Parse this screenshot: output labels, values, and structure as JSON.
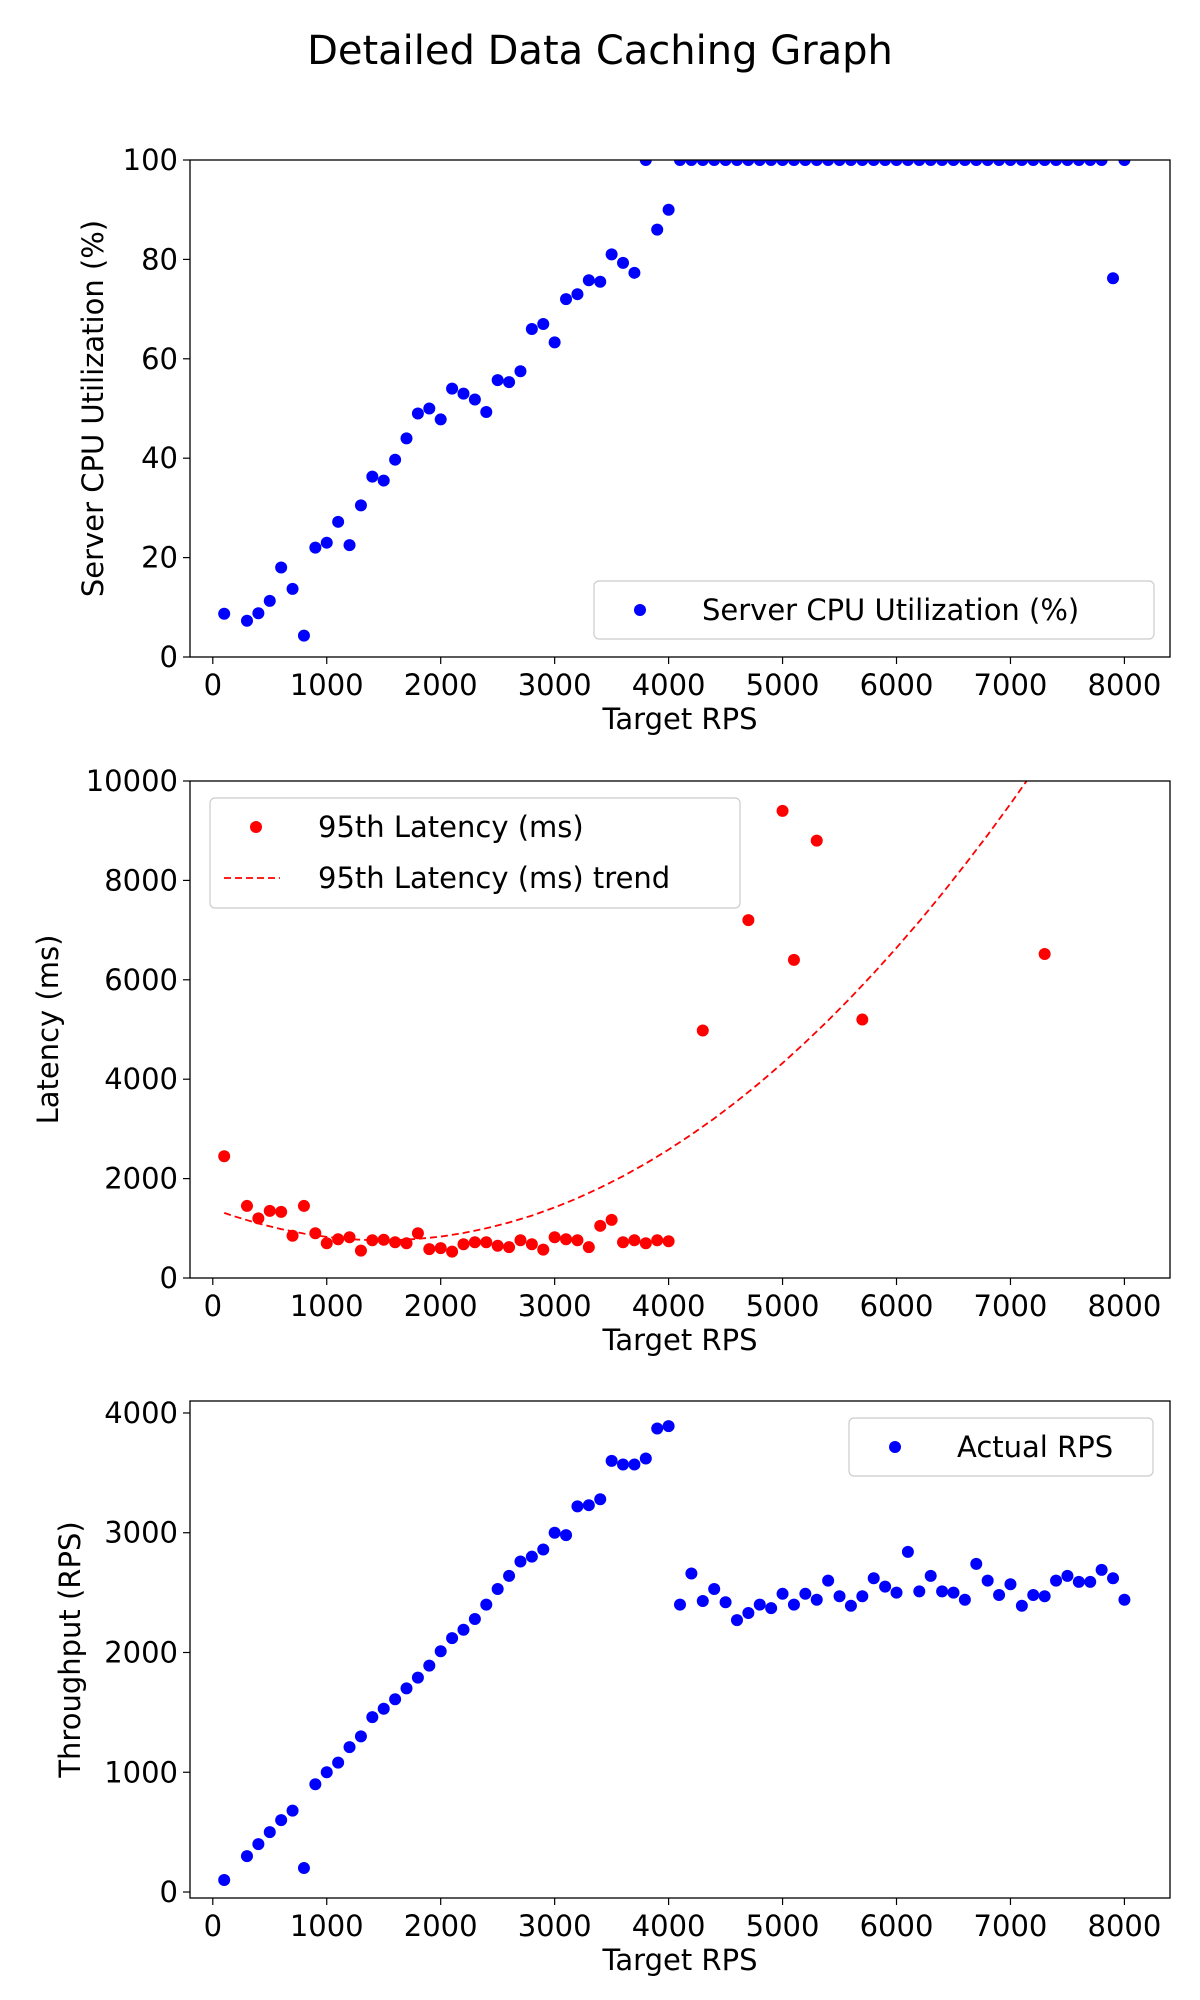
{
  "title": "Detailed Data Caching Graph",
  "colors": {
    "blue": "#0000ff",
    "red": "#ff0000"
  },
  "chart_data": [
    {
      "type": "scatter",
      "xlabel": "Target RPS",
      "ylabel": "Server CPU Utilization (%)",
      "xlim": [
        -200,
        8400
      ],
      "ylim": [
        0,
        100
      ],
      "xticks": [
        0,
        1000,
        2000,
        3000,
        4000,
        5000,
        6000,
        7000,
        8000
      ],
      "yticks": [
        0,
        20,
        40,
        60,
        80,
        100
      ],
      "legend_position": "lower-right",
      "series": [
        {
          "name": "Server CPU Utilization (%)",
          "kind": "points",
          "color": "#0000ff",
          "x": [
            100,
            300,
            400,
            500,
            600,
            700,
            800,
            900,
            1000,
            1100,
            1200,
            1300,
            1400,
            1500,
            1600,
            1700,
            1800,
            1900,
            2000,
            2100,
            2200,
            2300,
            2400,
            2500,
            2600,
            2700,
            2800,
            2900,
            3000,
            3100,
            3200,
            3300,
            3400,
            3500,
            3600,
            3700,
            3800,
            3900,
            4000,
            4100,
            4200,
            4300,
            4400,
            4500,
            4600,
            4700,
            4800,
            4900,
            5000,
            5100,
            5200,
            5300,
            5400,
            5500,
            5600,
            5700,
            5800,
            5900,
            6000,
            6100,
            6200,
            6300,
            6400,
            6500,
            6600,
            6700,
            6800,
            6900,
            7000,
            7100,
            7200,
            7300,
            7400,
            7500,
            7600,
            7700,
            7800,
            7900,
            8000
          ],
          "y": [
            8.7,
            7.3,
            8.8,
            11.3,
            18,
            13.7,
            4.3,
            22,
            23,
            27.2,
            22.5,
            30.5,
            36.3,
            35.5,
            39.7,
            44,
            49,
            50,
            47.8,
            54,
            53,
            51.8,
            49.3,
            55.7,
            55.3,
            57.5,
            66,
            67,
            63.3,
            72,
            73,
            75.8,
            75.5,
            81,
            79.3,
            77.3,
            100,
            86,
            90,
            100,
            100,
            100,
            100,
            100,
            100,
            100,
            100,
            100,
            100,
            100,
            100,
            100,
            100,
            100,
            100,
            100,
            100,
            100,
            100,
            100,
            100,
            100,
            100,
            100,
            100,
            100,
            100,
            100,
            100,
            100,
            100,
            100,
            100,
            100,
            100,
            100,
            100,
            76.2,
            100
          ]
        }
      ]
    },
    {
      "type": "scatter",
      "xlabel": "Target RPS",
      "ylabel": "Latency (ms)",
      "xlim": [
        -200,
        8400
      ],
      "ylim": [
        0,
        10000
      ],
      "xticks": [
        0,
        1000,
        2000,
        3000,
        4000,
        5000,
        6000,
        7000,
        8000
      ],
      "yticks": [
        0,
        2000,
        4000,
        6000,
        8000,
        10000
      ],
      "legend_position": "top-left",
      "series": [
        {
          "name": "95th Latency (ms)",
          "kind": "points",
          "color": "#ff0000",
          "x": [
            100,
            300,
            400,
            500,
            600,
            700,
            800,
            900,
            1000,
            1100,
            1200,
            1300,
            1400,
            1500,
            1600,
            1700,
            1800,
            1900,
            2000,
            2100,
            2200,
            2300,
            2400,
            2500,
            2600,
            2700,
            2800,
            2900,
            3000,
            3100,
            3200,
            3300,
            3400,
            3500,
            3600,
            3700,
            3800,
            3900,
            4000,
            4300,
            4700,
            5000,
            5100,
            5300,
            5700,
            7300
          ],
          "y": [
            2450,
            1450,
            1200,
            1350,
            1330,
            850,
            1450,
            900,
            700,
            780,
            820,
            550,
            760,
            770,
            720,
            700,
            900,
            580,
            600,
            530,
            680,
            720,
            720,
            650,
            620,
            760,
            680,
            570,
            820,
            780,
            760,
            620,
            1050,
            1170,
            720,
            760,
            700,
            760,
            740,
            4980,
            7200,
            9400,
            6400,
            8800,
            5200,
            6520
          ]
        },
        {
          "name": "95th Latency (ms) trend",
          "kind": "dashed-line",
          "color": "#ff0000",
          "x": [
            100,
            200,
            400,
            600,
            800,
            1000,
            1200,
            1400,
            1600,
            1800,
            2000,
            2200,
            2400,
            2600,
            2800,
            3000,
            3200,
            3400,
            3600,
            3800,
            4000,
            4200,
            4400,
            4600,
            4800,
            5000,
            5200,
            5400,
            5600,
            5800,
            6000,
            6200,
            6400,
            6600,
            6800,
            7000,
            7200
          ],
          "y": [
            1310,
            1233,
            1097,
            984,
            893,
            826,
            781,
            760,
            761,
            786,
            834,
            905,
            999,
            1116,
            1256,
            1420,
            1606,
            1816,
            2048,
            2304,
            2583,
            2885,
            3210,
            3558,
            3929,
            4324,
            4741,
            5182,
            5646,
            6133,
            6643,
            7176,
            7733,
            8313,
            8916,
            9542,
            10192
          ]
        }
      ]
    },
    {
      "type": "scatter",
      "xlabel": "Target RPS",
      "ylabel": "Throughput (RPS)",
      "xlim": [
        -200,
        8400
      ],
      "ylim": [
        -50,
        4100
      ],
      "xticks": [
        0,
        1000,
        2000,
        3000,
        4000,
        5000,
        6000,
        7000,
        8000
      ],
      "yticks": [
        0,
        1000,
        2000,
        3000,
        4000
      ],
      "legend_position": "top-right",
      "series": [
        {
          "name": "Actual RPS",
          "kind": "points",
          "color": "#0000ff",
          "x": [
            100,
            300,
            400,
            500,
            600,
            700,
            800,
            900,
            1000,
            1100,
            1200,
            1300,
            1400,
            1500,
            1600,
            1700,
            1800,
            1900,
            2000,
            2100,
            2200,
            2300,
            2400,
            2500,
            2600,
            2700,
            2800,
            2900,
            3000,
            3100,
            3200,
            3300,
            3400,
            3500,
            3600,
            3700,
            3800,
            3900,
            4000,
            4100,
            4200,
            4300,
            4400,
            4500,
            4600,
            4700,
            4800,
            4900,
            5000,
            5100,
            5200,
            5300,
            5400,
            5500,
            5600,
            5700,
            5800,
            5900,
            6000,
            6100,
            6200,
            6300,
            6400,
            6500,
            6600,
            6700,
            6800,
            6900,
            7000,
            7100,
            7200,
            7300,
            7400,
            7500,
            7600,
            7700,
            7800,
            7900,
            8000
          ],
          "y": [
            100,
            300,
            400,
            500,
            600,
            680,
            200,
            900,
            1000,
            1080,
            1210,
            1300,
            1460,
            1530,
            1610,
            1700,
            1790,
            1890,
            2010,
            2120,
            2190,
            2280,
            2400,
            2530,
            2640,
            2760,
            2800,
            2860,
            3000,
            2980,
            3220,
            3230,
            3280,
            3600,
            3570,
            3570,
            3620,
            3870,
            3890,
            2400,
            2660,
            2430,
            2530,
            2420,
            2270,
            2330,
            2400,
            2370,
            2490,
            2400,
            2490,
            2440,
            2600,
            2470,
            2390,
            2470,
            2620,
            2550,
            2500,
            2840,
            2510,
            2640,
            2510,
            2500,
            2440,
            2740,
            2600,
            2480,
            2570,
            2390,
            2480,
            2470,
            2600,
            2640,
            2590,
            2590,
            2690,
            2620,
            2440
          ]
        }
      ]
    }
  ]
}
